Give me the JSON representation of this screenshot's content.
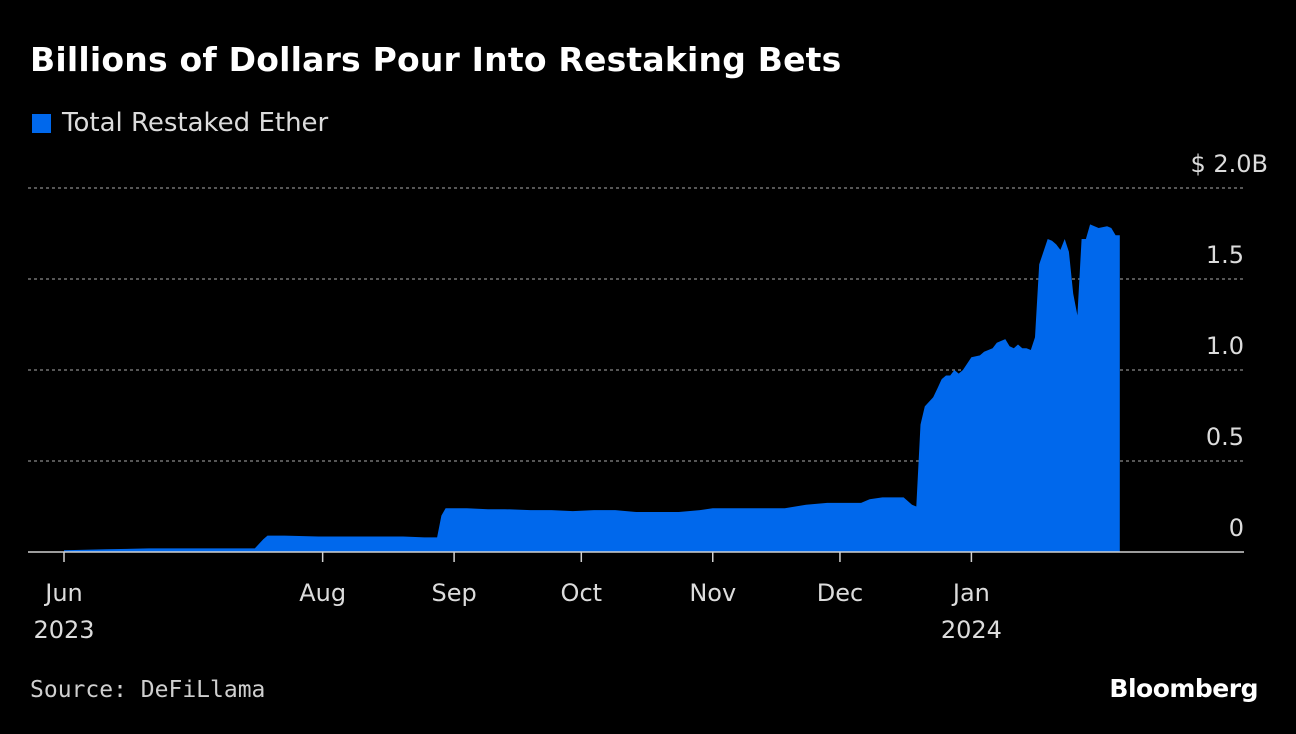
{
  "title": "Billions of Dollars Pour Into Restaking Bets",
  "source": "Source: DeFiLlama",
  "brand": "Bloomberg",
  "colors": {
    "background": "#000000",
    "series": "#0068ec",
    "grid": "#8a8a8a",
    "text": "#dcdcdc"
  },
  "chart_data": {
    "type": "area",
    "title": "Billions of Dollars Pour Into Restaking Bets",
    "xlabel": "",
    "ylabel": "",
    "unit": "$ billions",
    "legend": [
      {
        "name": "Total Restaked Ether",
        "color": "#0068ec"
      }
    ],
    "legend_position": "top-left",
    "grid": true,
    "ylim": [
      0,
      2.0
    ],
    "y_ticks": [
      {
        "value": 0,
        "label": "0"
      },
      {
        "value": 0.5,
        "label": "0.5"
      },
      {
        "value": 1.0,
        "label": "1.0"
      },
      {
        "value": 1.5,
        "label": "1.5"
      },
      {
        "value": 2.0,
        "label": "$ 2.0B"
      }
    ],
    "x_day_range": [
      0,
      254
    ],
    "x_ticks": [
      {
        "day": 0,
        "label": "Jun",
        "sublabel": "2023"
      },
      {
        "day": 61,
        "label": "Aug",
        "sublabel": ""
      },
      {
        "day": 92,
        "label": "Sep",
        "sublabel": ""
      },
      {
        "day": 122,
        "label": "Oct",
        "sublabel": ""
      },
      {
        "day": 153,
        "label": "Nov",
        "sublabel": ""
      },
      {
        "day": 183,
        "label": "Dec",
        "sublabel": ""
      },
      {
        "day": 214,
        "label": "Jan",
        "sublabel": "2024"
      }
    ],
    "series": [
      {
        "name": "Total Restaked Ether",
        "days": [
          0,
          10,
          20,
          30,
          40,
          45,
          47,
          48,
          52,
          60,
          70,
          75,
          80,
          85,
          88,
          89,
          90,
          92,
          95,
          100,
          104,
          110,
          115,
          120,
          125,
          130,
          135,
          140,
          145,
          150,
          153,
          160,
          165,
          170,
          175,
          180,
          183,
          188,
          190,
          193,
          195,
          198,
          200,
          201,
          202,
          203,
          205,
          206,
          207,
          208,
          209,
          210,
          211,
          212,
          214,
          216,
          217,
          219,
          220,
          222,
          223,
          224,
          225,
          226,
          227,
          228,
          229,
          230,
          232,
          233,
          234,
          235,
          236,
          237,
          238,
          239,
          240,
          241,
          242,
          244,
          246,
          247,
          248,
          249
        ],
        "values": [
          0.01,
          0.015,
          0.02,
          0.02,
          0.02,
          0.02,
          0.07,
          0.09,
          0.09,
          0.085,
          0.085,
          0.085,
          0.085,
          0.08,
          0.08,
          0.2,
          0.24,
          0.24,
          0.24,
          0.235,
          0.235,
          0.23,
          0.23,
          0.225,
          0.23,
          0.23,
          0.22,
          0.22,
          0.22,
          0.23,
          0.24,
          0.24,
          0.24,
          0.24,
          0.26,
          0.27,
          0.27,
          0.27,
          0.29,
          0.3,
          0.3,
          0.3,
          0.26,
          0.25,
          0.7,
          0.8,
          0.85,
          0.9,
          0.95,
          0.97,
          0.97,
          1.0,
          0.98,
          1.0,
          1.07,
          1.08,
          1.1,
          1.12,
          1.15,
          1.17,
          1.13,
          1.12,
          1.14,
          1.12,
          1.12,
          1.11,
          1.18,
          1.58,
          1.72,
          1.71,
          1.69,
          1.66,
          1.72,
          1.65,
          1.42,
          1.3,
          1.72,
          1.72,
          1.8,
          1.78,
          1.79,
          1.78,
          1.74,
          1.74
        ]
      }
    ]
  }
}
